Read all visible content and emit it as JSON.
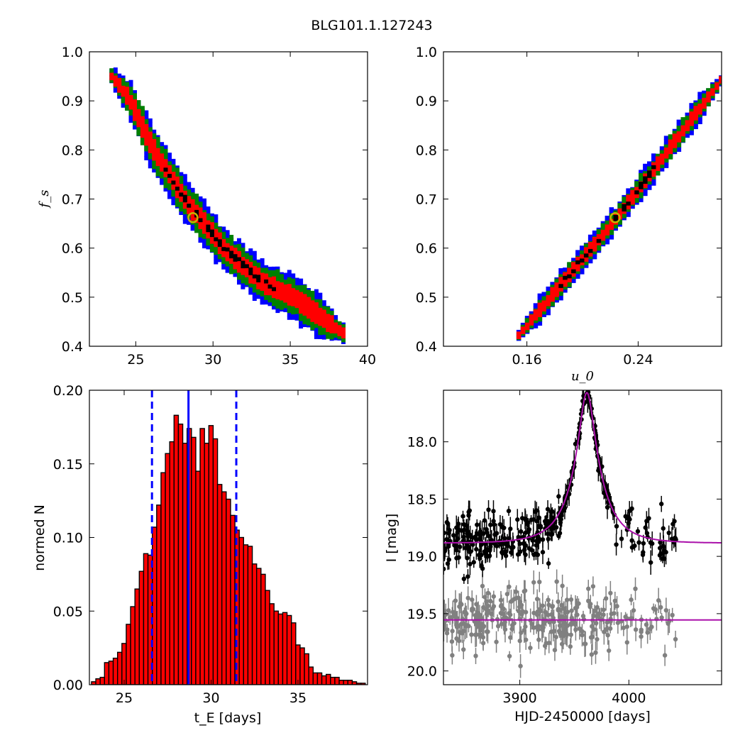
{
  "figure": {
    "title": "BLG101.1.127243"
  },
  "colors": {
    "blue": "#0000ff",
    "green": "#008000",
    "red": "#ff0000",
    "black": "#000000",
    "gray": "#808080",
    "magenta": "#aa10aa",
    "marker_edge": "#c8b400"
  },
  "chart_data": [
    {
      "id": "tE-fs",
      "type": "heatmap",
      "xlim": [
        22,
        40
      ],
      "ylim": [
        0.4,
        1.0
      ],
      "xticks": [
        "25",
        "30",
        "35",
        "40"
      ],
      "yticks": [
        "0.4",
        "0.5",
        "0.6",
        "0.7",
        "0.8",
        "0.9",
        "1.0"
      ],
      "xlabel": "",
      "ylabel": "f_s",
      "best_fit": {
        "x": 28.7,
        "y": 0.662
      },
      "ridge": [
        [
          23.3,
          0.95
        ],
        [
          24.5,
          0.9
        ],
        [
          26.0,
          0.8
        ],
        [
          28.0,
          0.7
        ],
        [
          30.5,
          0.6
        ],
        [
          33.0,
          0.53
        ],
        [
          35.0,
          0.5
        ],
        [
          38.5,
          0.42
        ]
      ],
      "confidence_widths": {
        "black": 0.004,
        "red": 0.018,
        "green": 0.032,
        "blue": 0.042
      }
    },
    {
      "id": "u0-fs",
      "type": "heatmap",
      "xlim": [
        0.1,
        0.3
      ],
      "ylim": [
        0.4,
        1.0
      ],
      "xticks": [
        "0.16",
        "0.24"
      ],
      "yticks": [
        "0.4",
        "0.5",
        "0.6",
        "0.7",
        "0.8",
        "0.9",
        "1.0"
      ],
      "xlabel": "u_0",
      "ylabel": "",
      "best_fit": {
        "x": 0.2235,
        "y": 0.662
      },
      "ridge": [
        [
          0.1525,
          0.42
        ],
        [
          0.2235,
          0.662
        ],
        [
          0.298,
          0.94
        ]
      ],
      "confidence_widths": {
        "black": 0.004,
        "red": 0.011,
        "green": 0.019,
        "blue": 0.026
      }
    },
    {
      "id": "tE-hist",
      "type": "bar",
      "xlim": [
        23,
        39
      ],
      "ylim": [
        0,
        0.2
      ],
      "xticks": [
        "25",
        "30",
        "35"
      ],
      "yticks": [
        "0.00",
        "0.05",
        "0.10",
        "0.15",
        "0.20"
      ],
      "xlabel": "t_E [days]",
      "ylabel": "normed N",
      "bin_start": 23.12,
      "bin_width": 0.25,
      "values": [
        0.002,
        0.004,
        0.005,
        0.015,
        0.016,
        0.018,
        0.022,
        0.028,
        0.041,
        0.053,
        0.065,
        0.077,
        0.089,
        0.088,
        0.107,
        0.122,
        0.144,
        0.157,
        0.165,
        0.183,
        0.177,
        0.164,
        0.174,
        0.168,
        0.145,
        0.174,
        0.164,
        0.176,
        0.167,
        0.136,
        0.131,
        0.126,
        0.115,
        0.105,
        0.1,
        0.095,
        0.094,
        0.082,
        0.079,
        0.075,
        0.064,
        0.055,
        0.05,
        0.048,
        0.049,
        0.047,
        0.042,
        0.027,
        0.025,
        0.021,
        0.012,
        0.008,
        0.008,
        0.006,
        0.007,
        0.005,
        0.005,
        0.003,
        0.003,
        0.003,
        0.002,
        0.001,
        0.001
      ],
      "median": 28.7,
      "lower": 26.6,
      "upper": 31.45
    },
    {
      "id": "lightcurve",
      "type": "scatter",
      "xlim": [
        3830,
        4085
      ],
      "ylim": [
        20.12,
        17.55
      ],
      "xticks": [
        "3900",
        "4000"
      ],
      "yticks": [
        "18.0",
        "18.5",
        "19.0",
        "19.5",
        "20.0"
      ],
      "xlabel": "HJD-2450000 [days]",
      "ylabel": "I [mag]",
      "model": {
        "t0": 3961.5,
        "tE": 28.7,
        "u0": 0.2235,
        "fs": 0.662,
        "baseline": 18.885
      },
      "series": [
        {
          "color": "black",
          "baseline": 18.885,
          "count": 360,
          "scatter": 0.12,
          "err": 0.06
        },
        {
          "color": "gray",
          "baseline": 19.55,
          "count": 300,
          "scatter": 0.13,
          "err": 0.065
        }
      ],
      "gray_line": 19.555
    }
  ]
}
